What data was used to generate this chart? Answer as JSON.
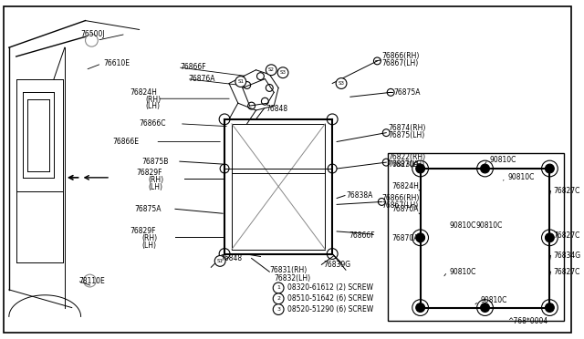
{
  "background_color": "#ffffff",
  "figure_code": "^768*0004",
  "screw_labels": [
    "08320-61612 (2) SCREW",
    "08510-51642 (6) SCREW",
    "08520-51290 (6) SCREW"
  ]
}
